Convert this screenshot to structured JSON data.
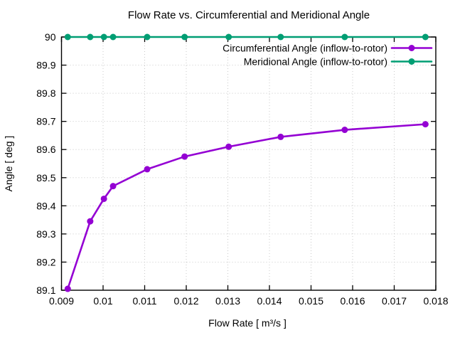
{
  "chart_data": {
    "type": "line",
    "title": "Flow Rate vs. Circumferential and Meridional Angle",
    "xlabel": "Flow Rate [ m³/s ]",
    "ylabel": "Angle [ deg ]",
    "xlim": [
      0.009,
      0.018
    ],
    "ylim": [
      89.1,
      90.0
    ],
    "grid": true,
    "legend_position": "top-right-inside",
    "xticks": {
      "values": [
        0.009,
        0.01,
        0.011,
        0.012,
        0.013,
        0.014,
        0.015,
        0.016,
        0.017,
        0.018
      ],
      "labels": [
        "0.009",
        "0.01",
        "0.011",
        "0.012",
        "0.013",
        "0.014",
        "0.015",
        "0.016",
        "0.017",
        "0.018"
      ]
    },
    "yticks": {
      "values": [
        89.1,
        89.2,
        89.3,
        89.4,
        89.5,
        89.6,
        89.7,
        89.8,
        89.9,
        90
      ],
      "labels": [
        "89.1",
        "89.2",
        "89.3",
        "89.4",
        "89.5",
        "89.6",
        "89.7",
        "89.8",
        "89.9",
        "90"
      ]
    },
    "x": [
      0.00915,
      0.00969,
      0.01002,
      0.01024,
      0.01106,
      0.01196,
      0.01302,
      0.01427,
      0.01581,
      0.01775
    ],
    "series": [
      {
        "name": "Circumferential Angle (inflow-to-rotor)",
        "color": "#9400D3",
        "marker": "circle",
        "values": [
          89.105,
          89.345,
          89.425,
          89.47,
          89.53,
          89.575,
          89.61,
          89.645,
          89.67,
          89.69
        ]
      },
      {
        "name": "Meridional Angle (inflow-to-rotor)",
        "color": "#009E73",
        "marker": "circle",
        "values": [
          90,
          90,
          90,
          90,
          90,
          90,
          90,
          90,
          90,
          90
        ]
      }
    ],
    "colors": {
      "background": "#ffffff",
      "border": "#000000",
      "grid": "#c8c8c8",
      "text": "#000000"
    }
  }
}
